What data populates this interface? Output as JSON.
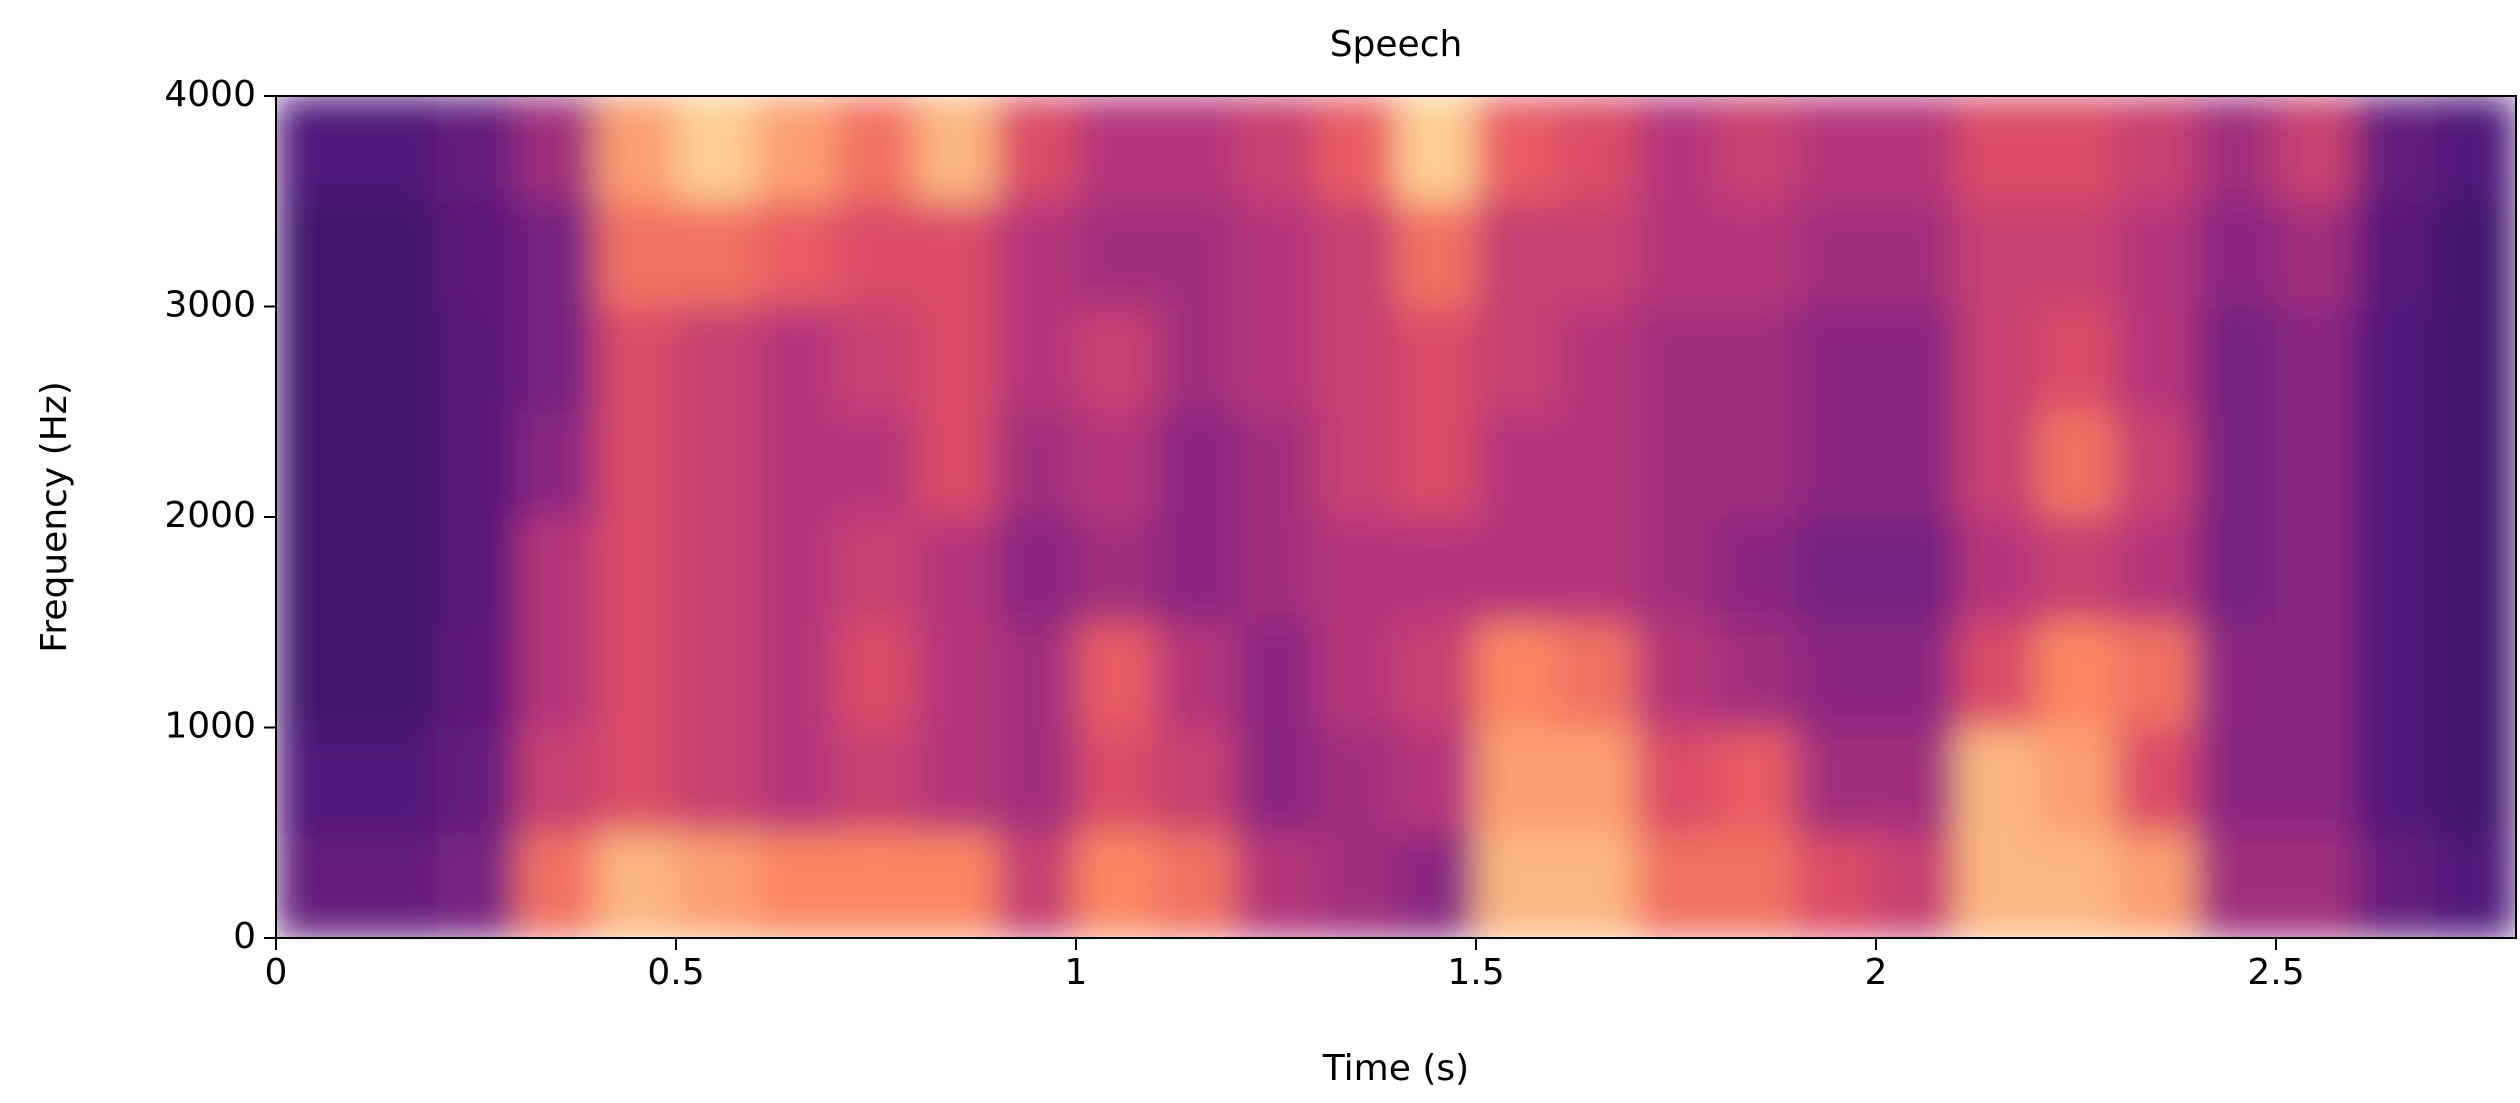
{
  "chart_data": {
    "type": "spectrogram",
    "title": "Speech",
    "xlabel": "Time (s)",
    "ylabel": "Frequency (Hz)",
    "colormap": "magma",
    "xlim": [
      0,
      2.8
    ],
    "ylim": [
      0,
      4000
    ],
    "xticks": [
      0,
      0.5,
      1,
      1.5,
      2,
      2.5
    ],
    "yticks": [
      0,
      1000,
      2000,
      3000,
      4000
    ],
    "xbins": [
      0,
      0.1,
      0.2,
      0.3,
      0.4,
      0.5,
      0.6,
      0.7,
      0.8,
      0.9,
      1.0,
      1.1,
      1.2,
      1.3,
      1.4,
      1.5,
      1.6,
      1.7,
      1.8,
      1.9,
      2.0,
      2.1,
      2.2,
      2.3,
      2.4,
      2.5,
      2.6,
      2.7,
      2.8
    ],
    "ybins": [
      0,
      500,
      1000,
      1500,
      2000,
      2500,
      3000,
      3500,
      4000
    ],
    "z": [
      [
        0.3,
        0.25,
        0.22,
        0.22,
        0.22,
        0.22,
        0.22,
        0.25
      ],
      [
        0.3,
        0.25,
        0.22,
        0.22,
        0.22,
        0.22,
        0.22,
        0.25
      ],
      [
        0.35,
        0.3,
        0.28,
        0.27,
        0.27,
        0.27,
        0.28,
        0.3
      ],
      [
        0.7,
        0.55,
        0.5,
        0.5,
        0.4,
        0.35,
        0.35,
        0.45
      ],
      [
        0.85,
        0.6,
        0.6,
        0.6,
        0.6,
        0.6,
        0.7,
        0.8
      ],
      [
        0.8,
        0.55,
        0.55,
        0.55,
        0.55,
        0.55,
        0.7,
        0.9
      ],
      [
        0.75,
        0.5,
        0.5,
        0.5,
        0.5,
        0.5,
        0.65,
        0.8
      ],
      [
        0.75,
        0.55,
        0.6,
        0.55,
        0.5,
        0.55,
        0.6,
        0.7
      ],
      [
        0.75,
        0.5,
        0.5,
        0.5,
        0.6,
        0.6,
        0.6,
        0.85
      ],
      [
        0.55,
        0.45,
        0.45,
        0.4,
        0.45,
        0.5,
        0.5,
        0.6
      ],
      [
        0.75,
        0.6,
        0.65,
        0.45,
        0.5,
        0.55,
        0.45,
        0.5
      ],
      [
        0.7,
        0.55,
        0.5,
        0.4,
        0.4,
        0.45,
        0.45,
        0.5
      ],
      [
        0.5,
        0.4,
        0.4,
        0.45,
        0.45,
        0.5,
        0.5,
        0.55
      ],
      [
        0.45,
        0.45,
        0.5,
        0.5,
        0.55,
        0.55,
        0.55,
        0.65
      ],
      [
        0.4,
        0.5,
        0.55,
        0.5,
        0.6,
        0.6,
        0.7,
        0.9
      ],
      [
        0.85,
        0.8,
        0.75,
        0.5,
        0.5,
        0.55,
        0.55,
        0.65
      ],
      [
        0.85,
        0.8,
        0.7,
        0.5,
        0.5,
        0.5,
        0.55,
        0.6
      ],
      [
        0.7,
        0.6,
        0.5,
        0.45,
        0.45,
        0.45,
        0.5,
        0.5
      ],
      [
        0.7,
        0.65,
        0.45,
        0.4,
        0.45,
        0.45,
        0.5,
        0.55
      ],
      [
        0.6,
        0.45,
        0.4,
        0.35,
        0.4,
        0.4,
        0.45,
        0.5
      ],
      [
        0.55,
        0.45,
        0.4,
        0.35,
        0.4,
        0.4,
        0.45,
        0.5
      ],
      [
        0.85,
        0.85,
        0.6,
        0.5,
        0.55,
        0.55,
        0.55,
        0.6
      ],
      [
        0.85,
        0.8,
        0.75,
        0.55,
        0.7,
        0.6,
        0.55,
        0.6
      ],
      [
        0.8,
        0.6,
        0.7,
        0.5,
        0.55,
        0.5,
        0.5,
        0.55
      ],
      [
        0.45,
        0.4,
        0.4,
        0.35,
        0.35,
        0.35,
        0.4,
        0.45
      ],
      [
        0.45,
        0.4,
        0.4,
        0.4,
        0.4,
        0.4,
        0.45,
        0.55
      ],
      [
        0.3,
        0.25,
        0.25,
        0.25,
        0.25,
        0.25,
        0.27,
        0.3
      ],
      [
        0.25,
        0.22,
        0.22,
        0.22,
        0.22,
        0.22,
        0.22,
        0.25
      ]
    ]
  }
}
